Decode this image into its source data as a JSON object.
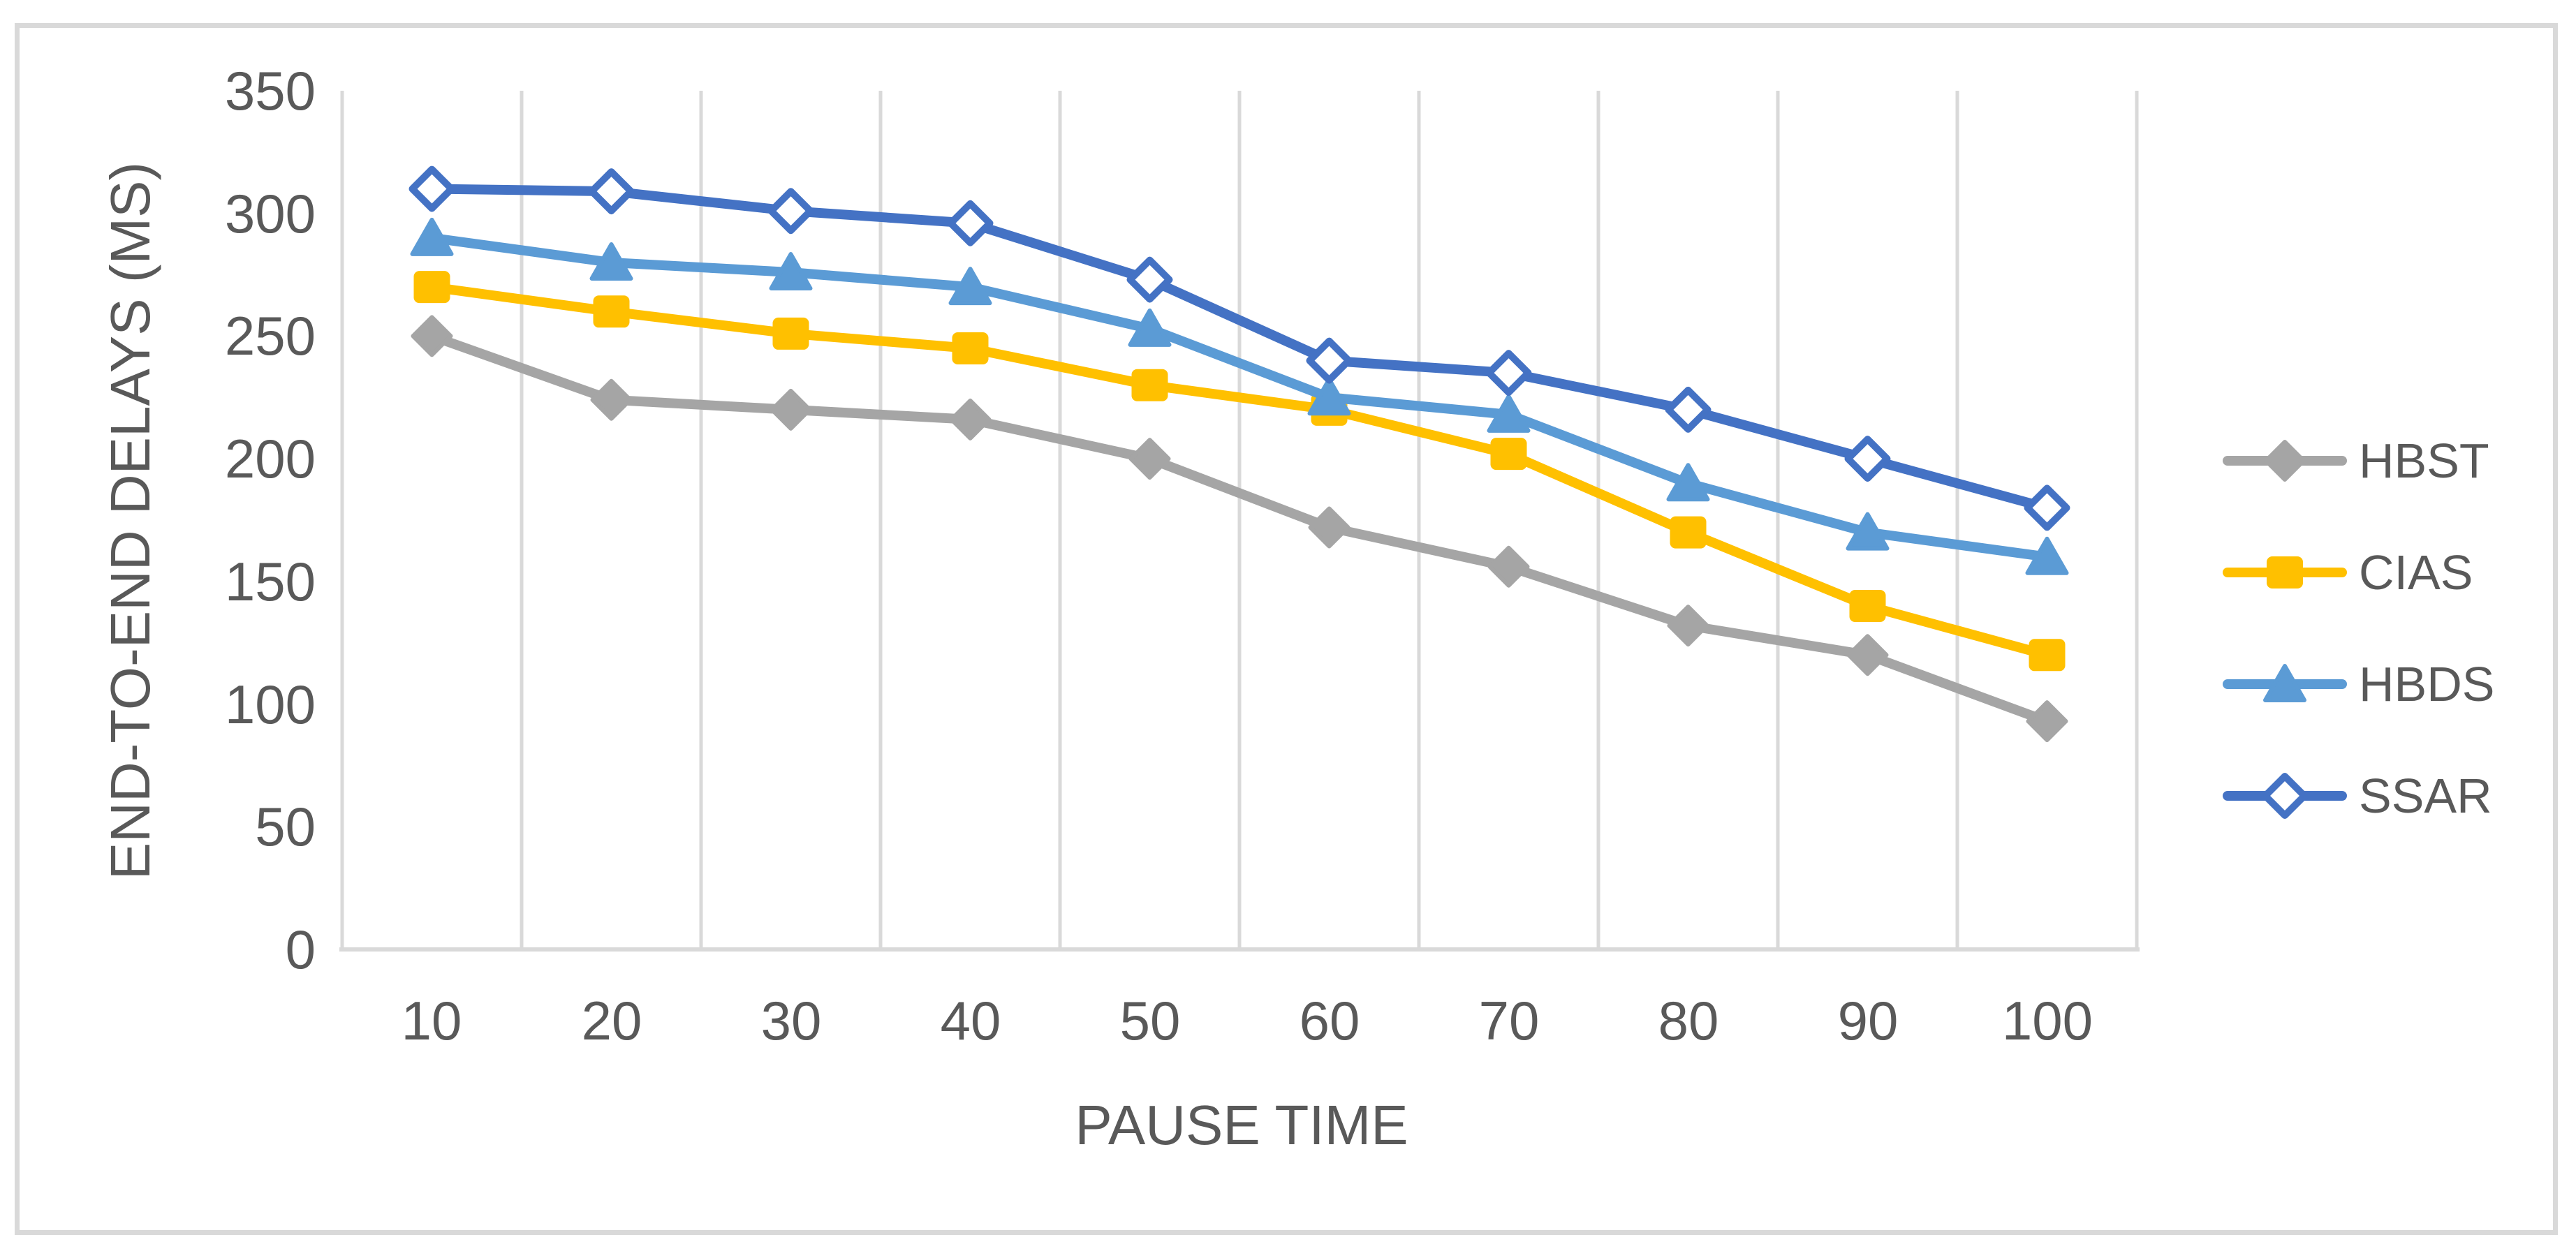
{
  "figure": {
    "background": "#FFFFFF",
    "border_color": "#D9D9D9"
  },
  "chart_data": {
    "type": "line",
    "title": "",
    "xlabel": "PAUSE TIME",
    "ylabel": "END-TO-END DELAYS (MS)",
    "categories": [
      10,
      20,
      30,
      40,
      50,
      60,
      70,
      80,
      90,
      100
    ],
    "series": [
      {
        "name": "HBST",
        "color": "#A5A5A5",
        "marker": "diamond-filled",
        "values": [
          250,
          224,
          220,
          216,
          200,
          172,
          156,
          132,
          120,
          93
        ]
      },
      {
        "name": "CIAS",
        "color": "#FFC000",
        "marker": "square-filled",
        "values": [
          270,
          260,
          251,
          245,
          230,
          220,
          202,
          170,
          140,
          120
        ]
      },
      {
        "name": "HBDS",
        "color": "#5B9BD5",
        "marker": "triangle-filled",
        "values": [
          290,
          280,
          276,
          270,
          253,
          225,
          218,
          190,
          170,
          160
        ]
      },
      {
        "name": "SSAR",
        "color": "#4472C4",
        "marker": "diamond-open",
        "values": [
          310,
          309,
          301,
          296,
          273,
          240,
          235,
          220,
          200,
          180
        ]
      }
    ],
    "ylim": [
      0,
      350
    ],
    "y_ticks": [
      350,
      300,
      250,
      200,
      150,
      100,
      50,
      0
    ],
    "grid": "vertical-only",
    "gridline_color": "#D9D9D9",
    "axis_line_color": "#D9D9D9",
    "text_color": "#595959",
    "legend_position": "right"
  }
}
